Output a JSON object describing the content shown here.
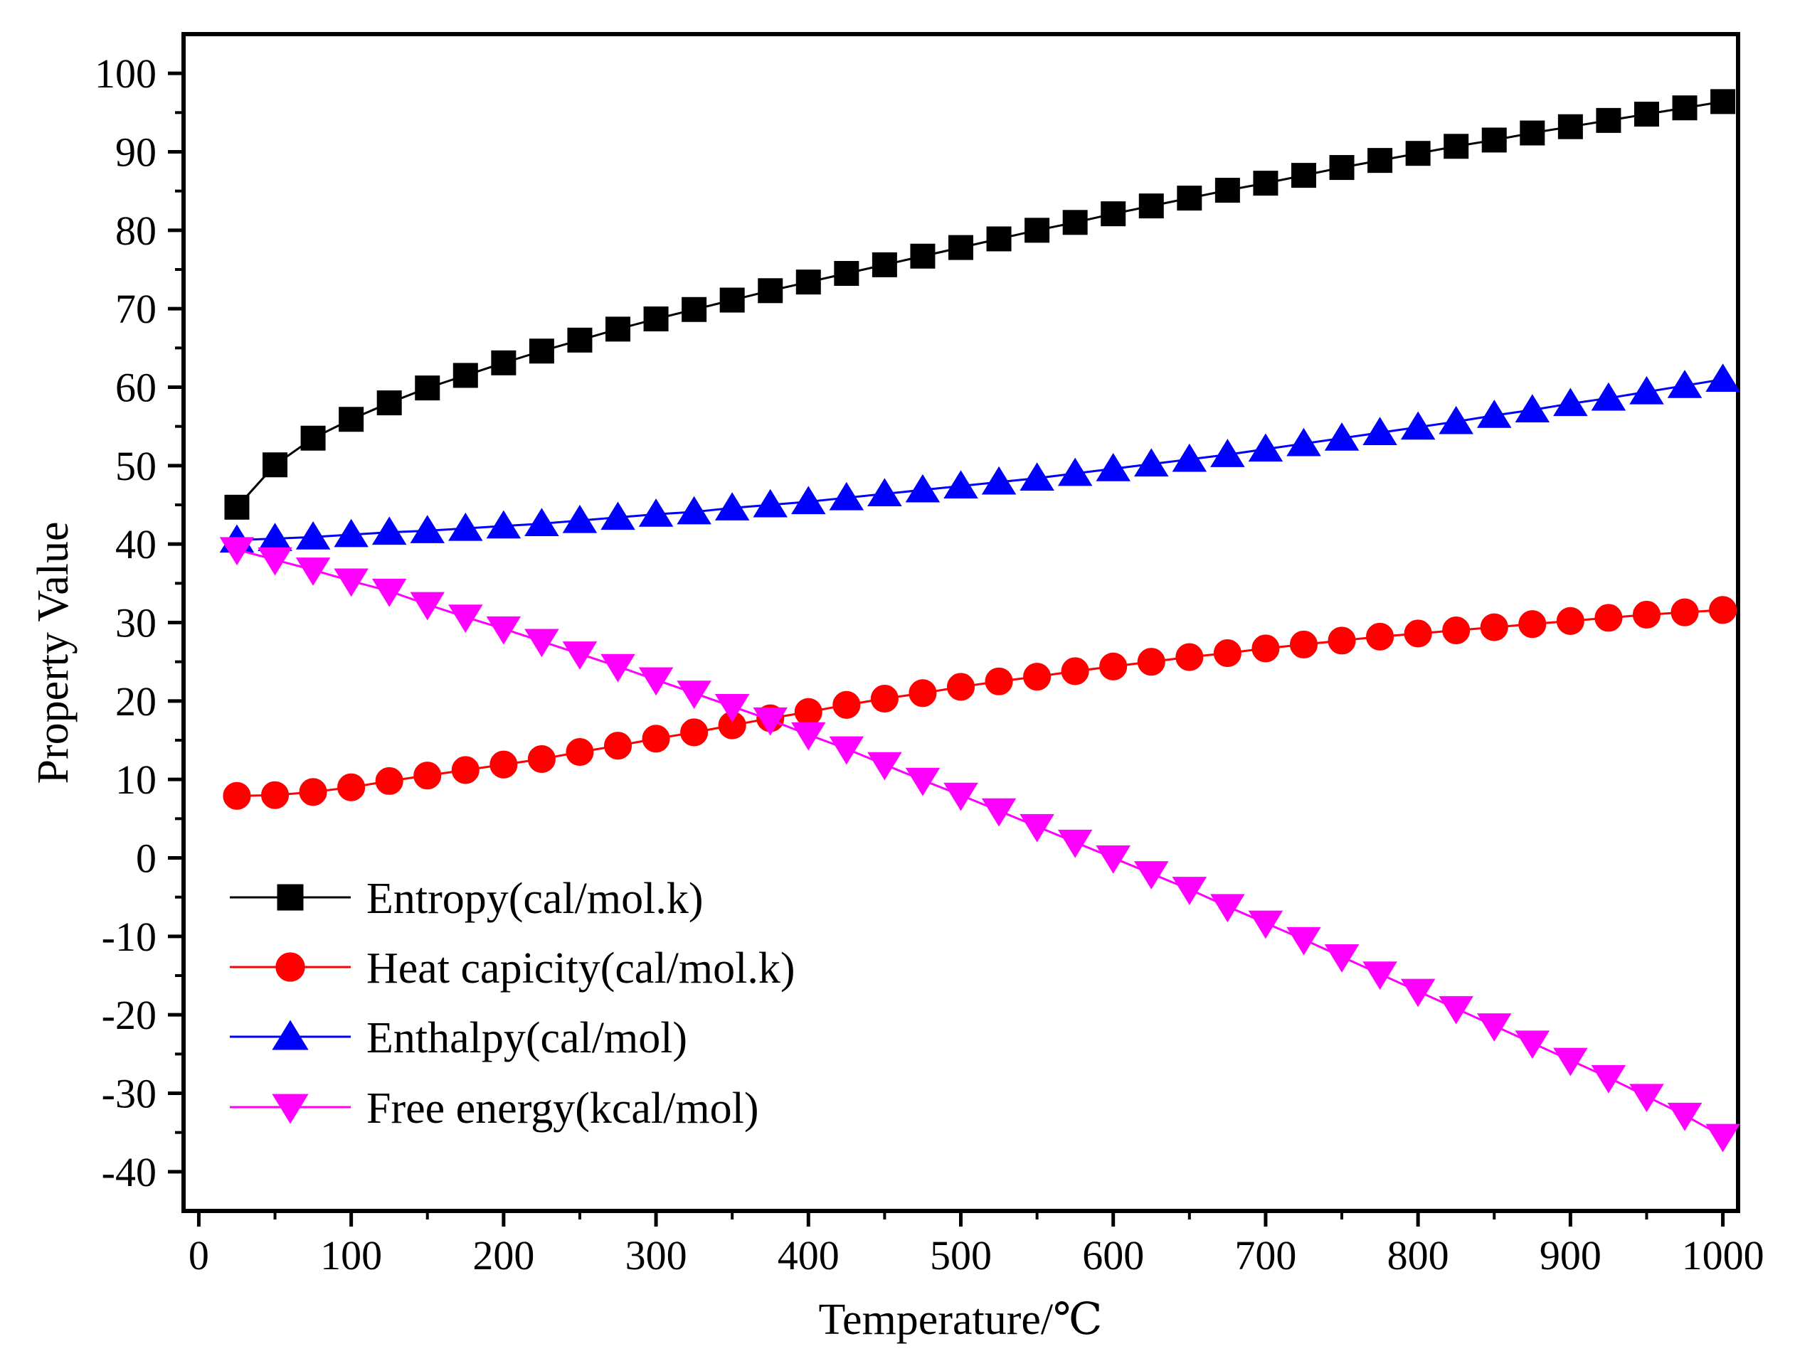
{
  "chart_data": {
    "type": "line",
    "xlabel": "Temperature/℃",
    "ylabel": "Property Value",
    "xlim": [
      -10,
      1010
    ],
    "ylim": [
      -45,
      105
    ],
    "xticks": [
      0,
      100,
      200,
      300,
      400,
      500,
      600,
      700,
      800,
      900,
      1000
    ],
    "yticks": [
      -40,
      -30,
      -20,
      -10,
      0,
      10,
      20,
      30,
      40,
      50,
      60,
      70,
      80,
      90,
      100
    ],
    "grid": false,
    "legend_position": "bottom-left",
    "x": [
      25,
      50,
      75,
      100,
      125,
      150,
      175,
      200,
      225,
      250,
      275,
      300,
      325,
      350,
      375,
      400,
      425,
      450,
      475,
      500,
      525,
      550,
      575,
      600,
      625,
      650,
      675,
      700,
      725,
      750,
      775,
      800,
      825,
      850,
      875,
      900,
      925,
      950,
      975,
      1000
    ],
    "series": [
      {
        "name": "Entropy(cal/mol.k)",
        "color": "#000000",
        "marker": "square",
        "values": [
          44.7,
          50.1,
          53.5,
          55.9,
          58.0,
          59.9,
          61.5,
          63.1,
          64.6,
          66.0,
          67.4,
          68.7,
          69.9,
          71.1,
          72.3,
          73.4,
          74.5,
          75.6,
          76.7,
          77.8,
          78.9,
          80.0,
          81.0,
          82.1,
          83.1,
          84.1,
          85.1,
          86.0,
          87.0,
          88.0,
          88.9,
          89.8,
          90.7,
          91.5,
          92.4,
          93.2,
          94.0,
          94.8,
          95.6,
          96.4
        ]
      },
      {
        "name": "Heat capicity(cal/mol.k)",
        "color": "#ff0000",
        "marker": "circle",
        "values": [
          7.9,
          8.0,
          8.4,
          9.0,
          9.8,
          10.5,
          11.2,
          11.9,
          12.6,
          13.5,
          14.3,
          15.2,
          16.0,
          16.9,
          17.8,
          18.6,
          19.5,
          20.3,
          21.0,
          21.8,
          22.5,
          23.1,
          23.8,
          24.4,
          25.0,
          25.6,
          26.1,
          26.7,
          27.2,
          27.7,
          28.2,
          28.6,
          29.0,
          29.4,
          29.8,
          30.2,
          30.6,
          31.0,
          31.3,
          31.6
        ]
      },
      {
        "name": "Enthalpy(cal/mol)",
        "color": "#0000ff",
        "marker": "triangle-up",
        "values": [
          40.5,
          40.7,
          40.9,
          41.2,
          41.5,
          41.7,
          42.0,
          42.3,
          42.6,
          43.0,
          43.4,
          43.8,
          44.1,
          44.6,
          45.0,
          45.4,
          45.9,
          46.4,
          46.9,
          47.4,
          47.9,
          48.4,
          49.0,
          49.6,
          50.2,
          50.8,
          51.4,
          52.1,
          52.8,
          53.5,
          54.2,
          54.9,
          55.6,
          56.4,
          57.1,
          57.9,
          58.6,
          59.4,
          60.2,
          61.0
        ]
      },
      {
        "name": "Free energy(kcal/mol)",
        "color": "#ff00ff",
        "marker": "triangle-down",
        "values": [
          39.3,
          38.0,
          36.7,
          35.3,
          34.0,
          32.3,
          30.7,
          29.2,
          27.6,
          26.0,
          24.4,
          22.7,
          21.0,
          19.3,
          17.6,
          15.7,
          13.9,
          11.9,
          9.9,
          8.0,
          6.0,
          4.0,
          2.0,
          0.0,
          -2.0,
          -4.0,
          -6.2,
          -8.3,
          -10.4,
          -12.6,
          -14.8,
          -17.0,
          -19.2,
          -21.4,
          -23.6,
          -25.8,
          -28.0,
          -30.4,
          -32.8,
          -35.5
        ]
      }
    ]
  }
}
